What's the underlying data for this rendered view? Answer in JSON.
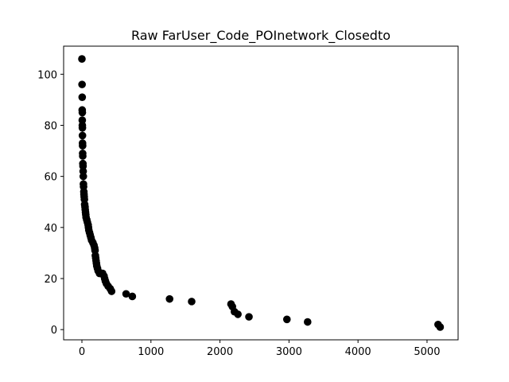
{
  "chart_data": {
    "type": "scatter",
    "title": "Raw FarUser_Code_POInetwork_Closedto",
    "xlabel": "",
    "ylabel": "",
    "xlim": [
      -265,
      5450
    ],
    "ylim": [
      -4,
      111
    ],
    "x_ticks": [
      0,
      1000,
      2000,
      3000,
      4000,
      5000
    ],
    "y_ticks": [
      0,
      20,
      40,
      60,
      80,
      100
    ],
    "grid": false,
    "marker_color": "#000000",
    "series": [
      {
        "points": [
          [
            0,
            106
          ],
          [
            2,
            96
          ],
          [
            4,
            91
          ],
          [
            4,
            86
          ],
          [
            6,
            85
          ],
          [
            5,
            82
          ],
          [
            6,
            80
          ],
          [
            7,
            79
          ],
          [
            8,
            76
          ],
          [
            9,
            73
          ],
          [
            10,
            72
          ],
          [
            11,
            69
          ],
          [
            12,
            68
          ],
          [
            14,
            65
          ],
          [
            16,
            64
          ],
          [
            18,
            62
          ],
          [
            20,
            60
          ],
          [
            22,
            57
          ],
          [
            24,
            56
          ],
          [
            28,
            54
          ],
          [
            30,
            53
          ],
          [
            33,
            52
          ],
          [
            36,
            51
          ],
          [
            40,
            49
          ],
          [
            45,
            48
          ],
          [
            48,
            47
          ],
          [
            52,
            46
          ],
          [
            56,
            45
          ],
          [
            60,
            44
          ],
          [
            70,
            43
          ],
          [
            80,
            42
          ],
          [
            90,
            41
          ],
          [
            95,
            40
          ],
          [
            100,
            39
          ],
          [
            110,
            38
          ],
          [
            120,
            37
          ],
          [
            130,
            36
          ],
          [
            140,
            35
          ],
          [
            160,
            34
          ],
          [
            175,
            33
          ],
          [
            185,
            32
          ],
          [
            190,
            31
          ],
          [
            195,
            29
          ],
          [
            200,
            28
          ],
          [
            205,
            27
          ],
          [
            210,
            26
          ],
          [
            215,
            25
          ],
          [
            225,
            24
          ],
          [
            235,
            23
          ],
          [
            255,
            22
          ],
          [
            300,
            22
          ],
          [
            320,
            21
          ],
          [
            330,
            20
          ],
          [
            340,
            19
          ],
          [
            355,
            18
          ],
          [
            380,
            17
          ],
          [
            410,
            16
          ],
          [
            430,
            15
          ],
          [
            640,
            14
          ],
          [
            730,
            13
          ],
          [
            1270,
            12
          ],
          [
            1590,
            11
          ],
          [
            2160,
            10
          ],
          [
            2180,
            9
          ],
          [
            2210,
            7
          ],
          [
            2260,
            6
          ],
          [
            2420,
            5
          ],
          [
            2970,
            4
          ],
          [
            3270,
            3
          ],
          [
            5160,
            2
          ],
          [
            5190,
            1
          ]
        ]
      }
    ]
  }
}
